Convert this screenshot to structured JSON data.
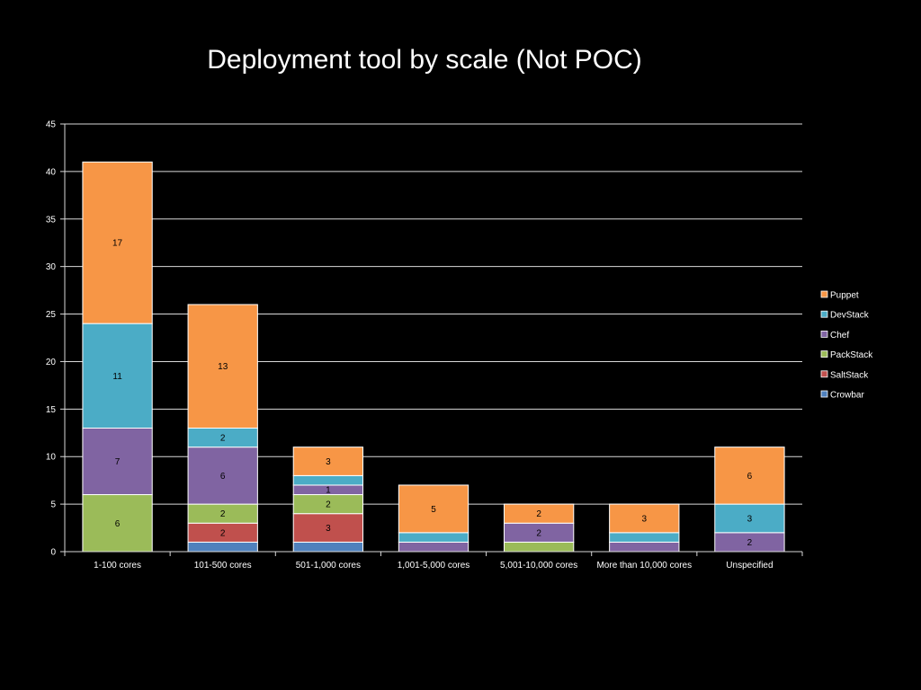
{
  "chart_data": {
    "type": "bar",
    "stacked": true,
    "title": "Deployment tool by scale (Not POC)",
    "xlabel": "",
    "ylabel": "",
    "ylim": [
      0,
      45
    ],
    "yticks": [
      0,
      5,
      10,
      15,
      20,
      25,
      30,
      35,
      40,
      45
    ],
    "grid": true,
    "legend_position": "right",
    "categories": [
      "1-100 cores",
      "101-500 cores",
      "501-1,000 cores",
      "1,001-5,000 cores",
      "5,001-10,000 cores",
      "More than 10,000 cores",
      "Unspecified"
    ],
    "series": [
      {
        "name": "Crowbar",
        "color": "#4F81BD",
        "values": [
          0,
          1,
          1,
          0,
          0,
          0,
          0
        ]
      },
      {
        "name": "SaltStack",
        "color": "#C0504D",
        "values": [
          0,
          2,
          3,
          0,
          0,
          0,
          0
        ]
      },
      {
        "name": "PackStack",
        "color": "#9BBB59",
        "values": [
          6,
          2,
          2,
          0,
          1,
          0,
          0
        ]
      },
      {
        "name": "Chef",
        "color": "#8064A2",
        "values": [
          7,
          6,
          1,
          1,
          2,
          1,
          2
        ]
      },
      {
        "name": "DevStack",
        "color": "#4BACC6",
        "values": [
          11,
          2,
          1,
          1,
          0,
          1,
          3
        ]
      },
      {
        "name": "Puppet",
        "color": "#F79646",
        "values": [
          17,
          13,
          3,
          5,
          2,
          3,
          6
        ]
      }
    ],
    "data_labels": [
      [
        null,
        null,
        null,
        null,
        null,
        null,
        null
      ],
      [
        null,
        2,
        3,
        null,
        null,
        null,
        null
      ],
      [
        6,
        2,
        2,
        null,
        null,
        null,
        null
      ],
      [
        7,
        6,
        1,
        null,
        2,
        null,
        2
      ],
      [
        11,
        2,
        null,
        null,
        null,
        null,
        3
      ],
      [
        17,
        13,
        3,
        5,
        2,
        3,
        6
      ]
    ]
  },
  "legend_order": [
    "Puppet",
    "DevStack",
    "Chef",
    "PackStack",
    "SaltStack",
    "Crowbar"
  ]
}
